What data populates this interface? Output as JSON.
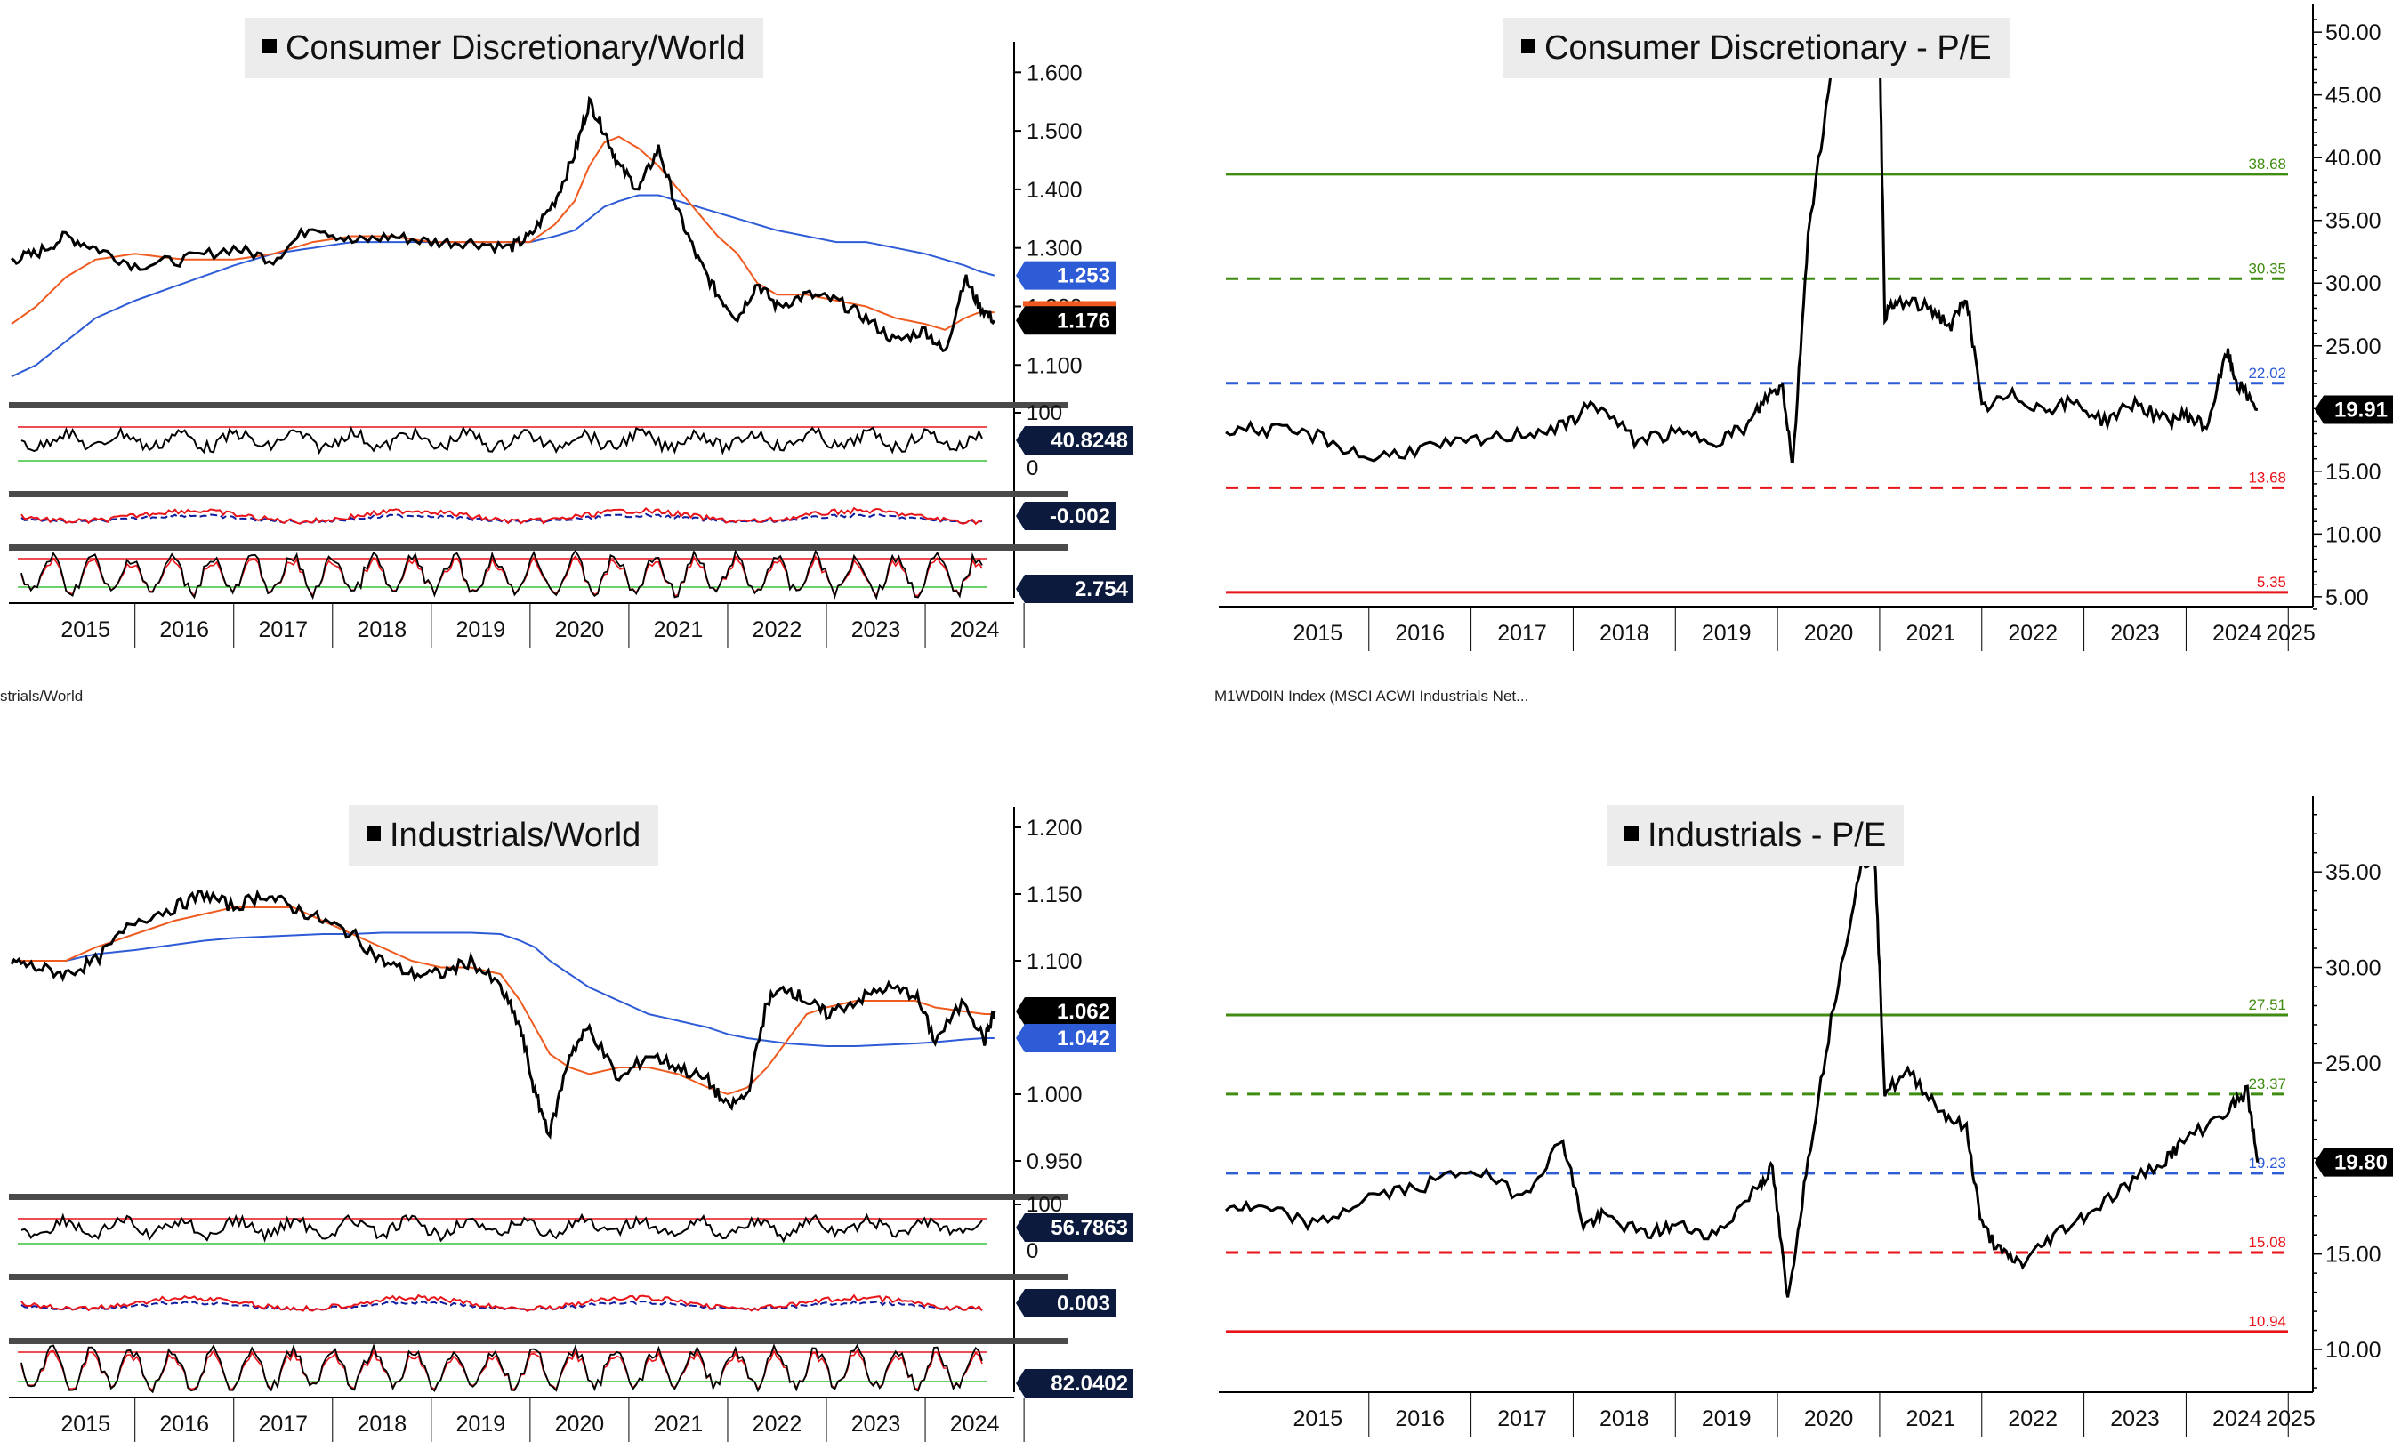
{
  "colors": {
    "black": "#000000",
    "orange": "#ef5a1f",
    "blue": "#2e5bd6",
    "red": "#e8141a",
    "green": "#3f8c10",
    "dark_blue": "#0f1d9e",
    "navy_badge": "#0b1a3d"
  },
  "footnotes": {
    "left": "strials/World",
    "right": "M1WD0IN Index (MSCI ACWI Industrials Net..."
  },
  "panels": {
    "cd_world": {
      "title": "Consumer Discretionary/World",
      "x_ticks": [
        "2015",
        "2016",
        "2017",
        "2018",
        "2019",
        "2020",
        "2021",
        "2022",
        "2023",
        "2024"
      ],
      "y_ticks": [
        "1.600",
        "1.500",
        "1.400",
        "1.300",
        "1.200",
        "1.100"
      ],
      "price_badge": "1.176",
      "ma_badge": "1.253",
      "rsi_badge": "40.8248",
      "rsi_top_label": "100",
      "rsi_bottom_label": "0",
      "macd_badge": "-0.002",
      "stoch_badge": "2.754"
    },
    "cd_pe": {
      "title": "Consumer Discretionary - P/E",
      "x_ticks": [
        "2015",
        "2016",
        "2017",
        "2018",
        "2019",
        "2020",
        "2021",
        "2022",
        "2023",
        "2024",
        "2025"
      ],
      "y_ticks": [
        "50.00",
        "45.00",
        "40.00",
        "35.00",
        "30.00",
        "25.00",
        "15.00",
        "10.00",
        "5.00"
      ],
      "level_labels": {
        "plus2sd": "38.68",
        "plus1sd": "30.35",
        "mean": "22.02",
        "minus1sd": "13.68",
        "minus2sd": "5.35"
      },
      "last_badge": "19.91"
    },
    "ind_world": {
      "title": "Industrials/World",
      "x_ticks": [
        "2015",
        "2016",
        "2017",
        "2018",
        "2019",
        "2020",
        "2021",
        "2022",
        "2023",
        "2024"
      ],
      "y_ticks": [
        "1.200",
        "1.150",
        "1.100",
        "1.000",
        "0.950"
      ],
      "price_badge": "1.062",
      "ma_badge": "1.042",
      "rsi_badge": "56.7863",
      "rsi_top_label": "100",
      "rsi_bottom_label": "0",
      "macd_badge": "0.003",
      "stoch_badge": "82.0402"
    },
    "ind_pe": {
      "title": "Industrials - P/E",
      "x_ticks": [
        "2015",
        "2016",
        "2017",
        "2018",
        "2019",
        "2020",
        "2021",
        "2022",
        "2023",
        "2024",
        "2025"
      ],
      "y_ticks": [
        "35.00",
        "30.00",
        "25.00",
        "15.00",
        "10.00"
      ],
      "level_labels": {
        "plus2sd": "27.51",
        "plus1sd": "23.37",
        "mean": "19.23",
        "minus1sd": "15.08",
        "minus2sd": "10.94"
      },
      "last_badge": "19.80"
    }
  },
  "chart_data": [
    {
      "type": "line",
      "title": "Consumer Discretionary/World",
      "x": [
        2014.75,
        2015.0,
        2015.3,
        2015.6,
        2016.0,
        2016.5,
        2017.0,
        2017.4,
        2017.8,
        2018.2,
        2018.6,
        2019.0,
        2019.4,
        2019.8,
        2020.0,
        2020.25,
        2020.45,
        2020.6,
        2020.75,
        2020.9,
        2021.1,
        2021.3,
        2021.5,
        2021.7,
        2021.9,
        2022.1,
        2022.3,
        2022.5,
        2022.8,
        2023.1,
        2023.4,
        2023.7,
        2024.0,
        2024.2,
        2024.4,
        2024.55,
        2024.7
      ],
      "series": [
        {
          "values": [
            1.28,
            1.29,
            1.32,
            1.3,
            1.27,
            1.28,
            1.3,
            1.28,
            1.34,
            1.31,
            1.32,
            1.31,
            1.31,
            1.3,
            1.32,
            1.38,
            1.46,
            1.55,
            1.5,
            1.44,
            1.4,
            1.47,
            1.36,
            1.28,
            1.22,
            1.18,
            1.24,
            1.2,
            1.22,
            1.21,
            1.18,
            1.14,
            1.16,
            1.12,
            1.25,
            1.2,
            1.176
          ]
        },
        {
          "values": [
            1.17,
            1.2,
            1.25,
            1.28,
            1.29,
            1.28,
            1.28,
            1.29,
            1.31,
            1.32,
            1.32,
            1.31,
            1.31,
            1.31,
            1.31,
            1.34,
            1.38,
            1.44,
            1.48,
            1.49,
            1.47,
            1.44,
            1.4,
            1.36,
            1.32,
            1.29,
            1.24,
            1.22,
            1.22,
            1.21,
            1.2,
            1.18,
            1.17,
            1.16,
            1.18,
            1.19,
            1.19
          ]
        },
        {
          "values": [
            1.08,
            1.1,
            1.14,
            1.18,
            1.21,
            1.24,
            1.27,
            1.29,
            1.3,
            1.31,
            1.31,
            1.31,
            1.31,
            1.31,
            1.31,
            1.32,
            1.33,
            1.35,
            1.37,
            1.38,
            1.39,
            1.39,
            1.38,
            1.37,
            1.36,
            1.35,
            1.34,
            1.33,
            1.32,
            1.31,
            1.31,
            1.3,
            1.29,
            1.28,
            1.27,
            1.26,
            1.253
          ]
        }
      ],
      "ylim": [
        1.07,
        1.64
      ]
    },
    {
      "type": "line",
      "title": "Consumer Discretionary - P/E",
      "x": [
        2014.6,
        2015.0,
        2015.5,
        2016.0,
        2016.5,
        2017.0,
        2017.5,
        2017.9,
        2018.2,
        2018.6,
        2019.0,
        2019.4,
        2019.7,
        2019.9,
        2020.05,
        2020.15,
        2020.3,
        2020.55,
        2020.8,
        2021.0,
        2021.05,
        2021.2,
        2021.5,
        2021.7,
        2021.85,
        2022.0,
        2022.3,
        2022.6,
        2022.9,
        2023.2,
        2023.5,
        2023.8,
        2024.0,
        2024.2,
        2024.4,
        2024.5,
        2024.7
      ],
      "series": [
        {
          "values": [
            18.5,
            18.3,
            17.8,
            16.0,
            16.8,
            17.3,
            18.0,
            18.5,
            20.5,
            17.5,
            18.0,
            17.5,
            18.5,
            21.0,
            21.8,
            15.5,
            34.0,
            48.0,
            50.0,
            49.0,
            27.5,
            28.5,
            28.0,
            26.5,
            29.0,
            20.0,
            21.0,
            20.0,
            20.5,
            19.0,
            20.5,
            19.0,
            19.5,
            18.5,
            24.5,
            22.0,
            19.91
          ]
        }
      ],
      "levels": [
        38.68,
        30.35,
        22.02,
        13.68,
        5.35
      ],
      "ylim": [
        3.5,
        51.5
      ]
    },
    {
      "type": "line",
      "title": "Industrials/World",
      "x": [
        2014.75,
        2015.0,
        2015.3,
        2015.6,
        2016.0,
        2016.4,
        2016.7,
        2017.0,
        2017.3,
        2017.6,
        2017.9,
        2018.2,
        2018.5,
        2018.8,
        2019.1,
        2019.4,
        2019.7,
        2019.9,
        2020.05,
        2020.2,
        2020.4,
        2020.6,
        2020.9,
        2021.2,
        2021.5,
        2021.8,
        2022.0,
        2022.2,
        2022.4,
        2022.6,
        2022.8,
        2023.0,
        2023.3,
        2023.6,
        2023.9,
        2024.1,
        2024.4,
        2024.6,
        2024.7
      ],
      "series": [
        {
          "values": [
            1.1,
            1.095,
            1.09,
            1.1,
            1.13,
            1.14,
            1.15,
            1.14,
            1.15,
            1.14,
            1.13,
            1.12,
            1.1,
            1.09,
            1.09,
            1.1,
            1.08,
            1.05,
            1.0,
            0.97,
            1.03,
            1.05,
            1.01,
            1.03,
            1.02,
            1.01,
            0.99,
            1.0,
            1.07,
            1.08,
            1.07,
            1.06,
            1.07,
            1.08,
            1.075,
            1.04,
            1.07,
            1.04,
            1.062
          ]
        },
        {
          "values": [
            1.1,
            1.1,
            1.1,
            1.11,
            1.12,
            1.13,
            1.135,
            1.14,
            1.14,
            1.14,
            1.13,
            1.12,
            1.11,
            1.1,
            1.095,
            1.095,
            1.09,
            1.07,
            1.05,
            1.03,
            1.02,
            1.015,
            1.02,
            1.02,
            1.015,
            1.005,
            1.0,
            1.005,
            1.02,
            1.04,
            1.06,
            1.065,
            1.07,
            1.07,
            1.07,
            1.065,
            1.062,
            1.06,
            1.06
          ]
        },
        {
          "values": [
            1.1,
            1.1,
            1.1,
            1.105,
            1.108,
            1.112,
            1.115,
            1.117,
            1.118,
            1.119,
            1.12,
            1.12,
            1.121,
            1.121,
            1.121,
            1.121,
            1.12,
            1.115,
            1.11,
            1.1,
            1.09,
            1.08,
            1.07,
            1.06,
            1.055,
            1.05,
            1.045,
            1.042,
            1.04,
            1.038,
            1.037,
            1.036,
            1.036,
            1.037,
            1.038,
            1.039,
            1.041,
            1.042,
            1.042
          ]
        }
      ],
      "ylim": [
        0.94,
        1.21
      ]
    },
    {
      "type": "line",
      "title": "Industrials - P/E",
      "x": [
        2014.6,
        2015.0,
        2015.5,
        2016.0,
        2016.5,
        2017.0,
        2017.5,
        2017.9,
        2018.1,
        2018.3,
        2018.7,
        2019.0,
        2019.4,
        2019.8,
        2019.95,
        2020.1,
        2020.3,
        2020.55,
        2020.8,
        2020.95,
        2021.05,
        2021.3,
        2021.6,
        2021.85,
        2022.0,
        2022.2,
        2022.4,
        2022.7,
        2023.0,
        2023.4,
        2023.8,
        2024.0,
        2024.4,
        2024.6,
        2024.7
      ],
      "series": [
        {
          "values": [
            17.5,
            17.3,
            16.5,
            18.0,
            18.5,
            19.5,
            18.0,
            21.0,
            16.5,
            17.0,
            16.0,
            16.5,
            16.0,
            18.5,
            19.5,
            12.5,
            20.0,
            28.0,
            35.0,
            36.0,
            23.5,
            24.5,
            22.5,
            21.5,
            16.5,
            15.0,
            14.5,
            16.0,
            17.0,
            18.5,
            20.0,
            21.0,
            22.5,
            23.5,
            19.8
          ]
        }
      ],
      "levels": [
        27.51,
        23.37,
        19.23,
        15.08,
        10.94
      ],
      "ylim": [
        8.0,
        38.5
      ]
    }
  ]
}
